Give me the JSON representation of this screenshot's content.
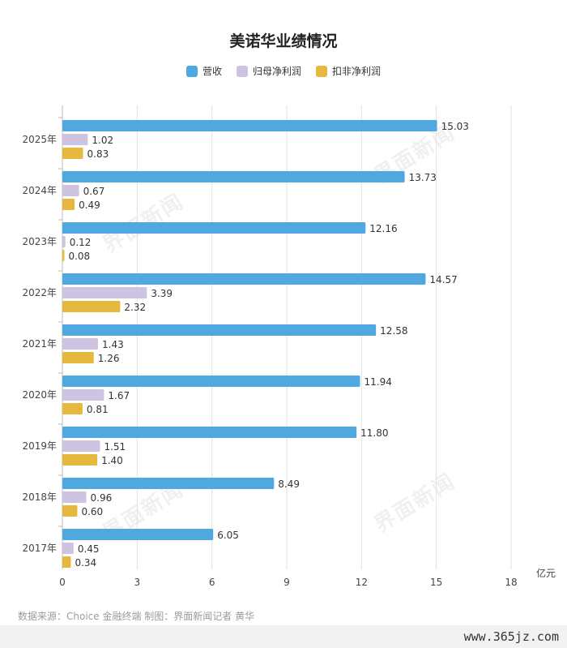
{
  "colors": {
    "revenue": "#4fa8df",
    "net_profit": "#cec3e0",
    "deducted_profit": "#e6b83e",
    "grid": "#e2e2e2",
    "axis": "#bbbbbb"
  },
  "chart_data": {
    "type": "bar",
    "orientation": "horizontal",
    "title": "美诺华业绩情况",
    "categories": [
      "2025年",
      "2024年",
      "2023年",
      "2022年",
      "2021年",
      "2020年",
      "2019年",
      "2018年",
      "2017年"
    ],
    "series": [
      {
        "name": "营收",
        "values": [
          15.03,
          13.73,
          12.16,
          14.57,
          12.58,
          11.94,
          11.8,
          8.49,
          6.05
        ],
        "labels": [
          "15.03",
          "13.73",
          "12.16",
          "14.57",
          "12.58",
          "11.94",
          "11.80",
          "8.49",
          "6.05"
        ]
      },
      {
        "name": "归母净利润",
        "values": [
          1.02,
          0.67,
          0.12,
          3.39,
          1.43,
          1.67,
          1.51,
          0.96,
          0.45
        ],
        "labels": [
          "1.02",
          "0.67",
          "0.12",
          "3.39",
          "1.43",
          "1.67",
          "1.51",
          "0.96",
          "0.45"
        ]
      },
      {
        "name": "扣非净利润",
        "values": [
          0.83,
          0.49,
          0.08,
          2.32,
          1.26,
          0.81,
          1.4,
          0.6,
          0.34
        ],
        "labels": [
          "0.83",
          "0.49",
          "0.08",
          "2.32",
          "1.26",
          "0.81",
          "1.40",
          "0.60",
          "0.34"
        ]
      }
    ],
    "xlim": [
      0,
      18
    ],
    "xticks": [
      0,
      3,
      6,
      9,
      12,
      15,
      18
    ],
    "unit": "亿元",
    "grid": "vertical",
    "legend": "top-center"
  },
  "source": "数据来源：Choice 金融终端 制图：界面新闻记者 黄华",
  "watermark": "界面新闻",
  "footer_site": "www.365jz.com"
}
